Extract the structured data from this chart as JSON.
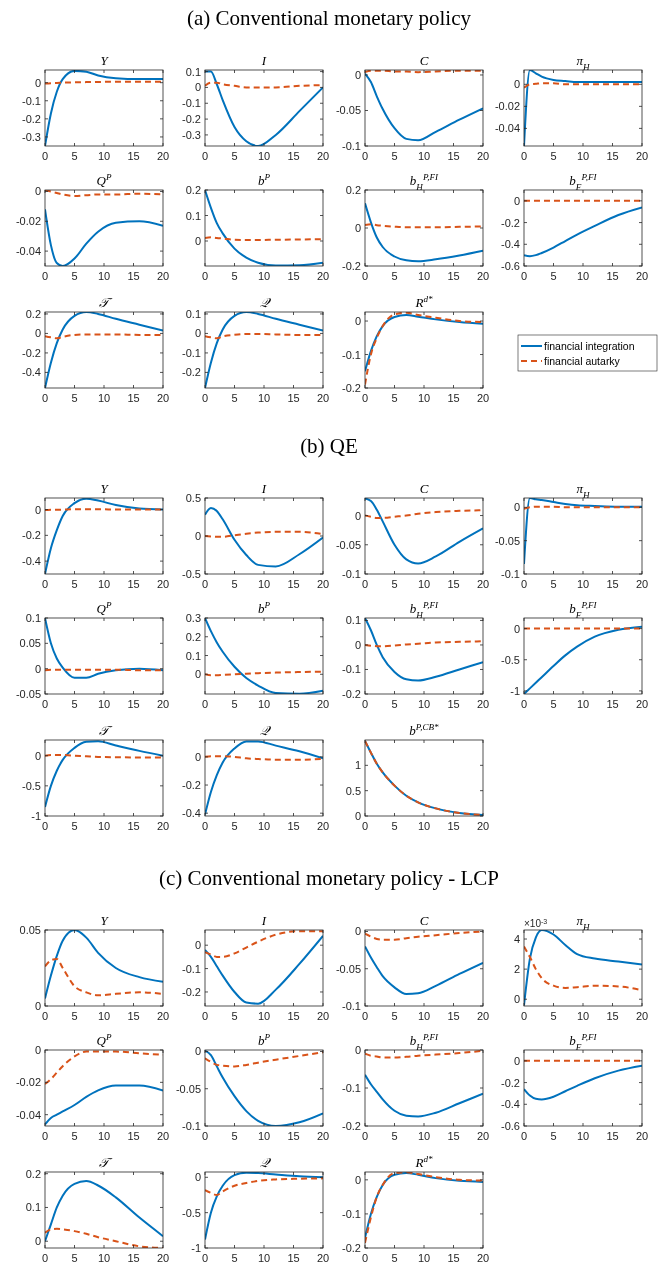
{
  "chart_data": [
    {
      "type": "line",
      "title": "Y",
      "annotations": [
        "(a) Conventional monetary policy"
      ],
      "x": [
        0,
        1,
        2,
        3,
        5,
        7,
        9,
        12,
        16,
        20
      ],
      "xlim": [
        0,
        20
      ],
      "xticks": [
        0,
        5,
        10,
        15,
        20
      ],
      "ylim": [
        -0.35,
        0.07
      ],
      "yticks": [
        -0.3,
        -0.2,
        -0.1,
        0
      ],
      "series": [
        {
          "color": "#0072bd",
          "line_style": "solid",
          "values": [
            -0.35,
            -0.17,
            -0.05,
            0.02,
            0.065,
            0.06,
            0.04,
            0.025,
            0.02,
            0.02
          ]
        },
        {
          "color": "#d95319",
          "line_style": "dashed",
          "values": [
            -0.005,
            -0.003,
            -0.002,
            0,
            0.002,
            0.003,
            0.004,
            0.005,
            0.005,
            0.005
          ]
        }
      ]
    },
    {
      "type": "line",
      "title": "I",
      "x": [
        0,
        1,
        2,
        3,
        5,
        7,
        9,
        12,
        16,
        20
      ],
      "xlim": [
        0,
        20
      ],
      "xticks": [
        0,
        5,
        10,
        15,
        20
      ],
      "ylim": [
        -0.37,
        0.11
      ],
      "yticks": [
        -0.3,
        -0.2,
        -0.1,
        0,
        0.1
      ],
      "series": [
        {
          "color": "#0072bd",
          "line_style": "solid",
          "values": [
            0.1,
            0.1,
            0.02,
            -0.08,
            -0.25,
            -0.34,
            -0.37,
            -0.3,
            -0.15,
            0
          ]
        },
        {
          "color": "#d95319",
          "line_style": "dashed",
          "values": [
            0.01,
            0.03,
            0.03,
            0.02,
            0.01,
            0,
            0,
            0,
            0.01,
            0.015
          ]
        }
      ]
    },
    {
      "type": "line",
      "title": "C",
      "x": [
        0,
        1,
        2,
        3,
        5,
        7,
        9,
        12,
        16,
        20
      ],
      "xlim": [
        0,
        20
      ],
      "xticks": [
        0,
        5,
        10,
        15,
        20
      ],
      "ylim": [
        -0.1,
        0.007
      ],
      "yticks": [
        -0.1,
        -0.05,
        0
      ],
      "series": [
        {
          "color": "#0072bd",
          "line_style": "solid",
          "values": [
            0.002,
            -0.01,
            -0.03,
            -0.048,
            -0.075,
            -0.09,
            -0.092,
            -0.08,
            -0.063,
            -0.047
          ]
        },
        {
          "color": "#d95319",
          "line_style": "dashed",
          "values": [
            0.004,
            0.006,
            0.006,
            0.006,
            0.005,
            0.005,
            0.004,
            0.005,
            0.006,
            0.006
          ]
        }
      ]
    },
    {
      "type": "line",
      "title": "π$_{H}$",
      "x": [
        0,
        1,
        2,
        3,
        5,
        7,
        9,
        12,
        16,
        20
      ],
      "xlim": [
        0,
        20
      ],
      "xticks": [
        0,
        5,
        10,
        15,
        20
      ],
      "ylim": [
        -0.056,
        0.013
      ],
      "yticks": [
        -0.04,
        -0.02,
        0
      ],
      "series": [
        {
          "color": "#0072bd",
          "line_style": "solid",
          "values": [
            -0.056,
            0.013,
            0.01,
            0.007,
            0.004,
            0.003,
            0.002,
            0.002,
            0.002,
            0.002
          ]
        },
        {
          "color": "#d95319",
          "line_style": "dashed",
          "values": [
            -0.003,
            0,
            0.0005,
            0.001,
            0.001,
            0,
            0,
            0,
            0,
            0
          ]
        }
      ]
    },
    {
      "type": "line",
      "title": "Q$^{P}$",
      "x": [
        0,
        1,
        2,
        3,
        5,
        7,
        9,
        12,
        16,
        20
      ],
      "xlim": [
        0,
        20
      ],
      "xticks": [
        0,
        5,
        10,
        15,
        20
      ],
      "ylim": [
        -0.05,
        0.001
      ],
      "yticks": [
        -0.04,
        -0.02,
        0
      ],
      "series": [
        {
          "color": "#0072bd",
          "line_style": "solid",
          "values": [
            -0.012,
            -0.036,
            -0.048,
            -0.05,
            -0.045,
            -0.035,
            -0.027,
            -0.021,
            -0.02,
            -0.023
          ]
        },
        {
          "color": "#d95319",
          "line_style": "dashed",
          "values": [
            0.001,
            0,
            -0.001,
            -0.002,
            -0.003,
            -0.0025,
            -0.002,
            -0.002,
            -0.0015,
            -0.002
          ]
        }
      ]
    },
    {
      "type": "line",
      "title": "b$^{P}$",
      "x": [
        0,
        1,
        2,
        3,
        5,
        7,
        9,
        12,
        16,
        20
      ],
      "xlim": [
        0,
        20
      ],
      "xticks": [
        0,
        5,
        10,
        15,
        20
      ],
      "ylim": [
        -0.098,
        0.2
      ],
      "yticks": [
        0,
        0.1,
        0.2
      ],
      "series": [
        {
          "color": "#0072bd",
          "line_style": "solid",
          "values": [
            0.2,
            0.13,
            0.07,
            0.03,
            -0.03,
            -0.065,
            -0.085,
            -0.096,
            -0.095,
            -0.085
          ]
        },
        {
          "color": "#d95319",
          "line_style": "dashed",
          "values": [
            0.012,
            0.015,
            0.012,
            0.01,
            0.005,
            0.004,
            0.004,
            0.005,
            0.006,
            0.007
          ]
        }
      ]
    },
    {
      "type": "line",
      "title": "b$_{H}$$^{P,FI}$",
      "x": [
        0,
        1,
        2,
        3,
        5,
        7,
        9,
        12,
        16,
        20
      ],
      "xlim": [
        0,
        20
      ],
      "xticks": [
        0,
        5,
        10,
        15,
        20
      ],
      "ylim": [
        -0.2,
        0.2
      ],
      "yticks": [
        -0.2,
        0,
        0.2
      ],
      "series": [
        {
          "color": "#0072bd",
          "line_style": "solid",
          "values": [
            0.13,
            0.03,
            -0.05,
            -0.1,
            -0.15,
            -0.17,
            -0.175,
            -0.165,
            -0.145,
            -0.12
          ]
        },
        {
          "color": "#d95319",
          "line_style": "dashed",
          "values": [
            0.015,
            0.02,
            0.015,
            0.012,
            0.007,
            0.004,
            0.004,
            0.004,
            0.006,
            0.008
          ]
        }
      ]
    },
    {
      "type": "line",
      "title": "b$_{F}$$^{P,FI}$",
      "x": [
        0,
        1,
        2,
        3,
        5,
        7,
        9,
        12,
        16,
        20
      ],
      "xlim": [
        0,
        20
      ],
      "xticks": [
        0,
        5,
        10,
        15,
        20
      ],
      "ylim": [
        -0.6,
        0.1
      ],
      "yticks": [
        -0.6,
        -0.4,
        -0.2,
        0
      ],
      "series": [
        {
          "color": "#0072bd",
          "line_style": "solid",
          "values": [
            -0.5,
            -0.51,
            -0.5,
            -0.48,
            -0.43,
            -0.37,
            -0.31,
            -0.23,
            -0.13,
            -0.06
          ]
        },
        {
          "color": "#d95319",
          "line_style": "dashed",
          "values": [
            0,
            0,
            0,
            0,
            0,
            0,
            0,
            0,
            0,
            0
          ]
        }
      ]
    },
    {
      "type": "line",
      "title": "𝒯",
      "x": [
        0,
        1,
        2,
        3,
        5,
        7,
        9,
        12,
        16,
        20
      ],
      "xlim": [
        0,
        20
      ],
      "xticks": [
        0,
        5,
        10,
        15,
        20
      ],
      "ylim": [
        -0.56,
        0.22
      ],
      "yticks": [
        -0.4,
        -0.2,
        0,
        0.2
      ],
      "series": [
        {
          "color": "#0072bd",
          "line_style": "solid",
          "values": [
            -0.56,
            -0.3,
            -0.1,
            0.04,
            0.18,
            0.22,
            0.2,
            0.15,
            0.09,
            0.03
          ]
        },
        {
          "color": "#d95319",
          "line_style": "dashed",
          "values": [
            -0.03,
            -0.04,
            -0.05,
            -0.035,
            -0.015,
            -0.01,
            -0.01,
            -0.01,
            -0.015,
            -0.015
          ]
        }
      ]
    },
    {
      "type": "line",
      "title": "𝒬",
      "x": [
        0,
        1,
        2,
        3,
        5,
        7,
        9,
        12,
        16,
        20
      ],
      "xlim": [
        0,
        20
      ],
      "xticks": [
        0,
        5,
        10,
        15,
        20
      ],
      "ylim": [
        -0.28,
        0.11
      ],
      "yticks": [
        -0.2,
        -0.1,
        0,
        0.1
      ],
      "series": [
        {
          "color": "#0072bd",
          "line_style": "solid",
          "values": [
            -0.28,
            -0.15,
            -0.05,
            0.02,
            0.09,
            0.11,
            0.1,
            0.075,
            0.045,
            0.015
          ]
        },
        {
          "color": "#d95319",
          "line_style": "dashed",
          "values": [
            -0.015,
            -0.02,
            -0.025,
            -0.015,
            -0.007,
            -0.003,
            -0.003,
            -0.005,
            -0.008,
            -0.008
          ]
        }
      ]
    },
    {
      "type": "line",
      "title": "R$^{d*}$",
      "legend": "right",
      "x": [
        0,
        1,
        2,
        3,
        5,
        7,
        9,
        12,
        16,
        20
      ],
      "xlim": [
        0,
        20
      ],
      "xticks": [
        0,
        5,
        10,
        15,
        20
      ],
      "ylim": [
        -0.2,
        0.027
      ],
      "yticks": [
        -0.2,
        -0.1,
        0
      ],
      "series": [
        {
          "name": "financial integration",
          "color": "#0072bd",
          "line_style": "solid",
          "values": [
            -0.15,
            -0.09,
            -0.045,
            -0.015,
            0.012,
            0.018,
            0.013,
            0.005,
            -0.003,
            -0.008
          ]
        },
        {
          "name": "financial autarky",
          "color": "#d95319",
          "line_style": "dashed",
          "values": [
            -0.19,
            -0.1,
            -0.05,
            -0.015,
            0.02,
            0.025,
            0.018,
            0.01,
            0,
            -0.003
          ]
        }
      ]
    },
    {
      "type": "line",
      "title": "Y",
      "annotations": [
        "(b) QE"
      ],
      "x": [
        0,
        1,
        2,
        3,
        5,
        7,
        9,
        12,
        16,
        20
      ],
      "xlim": [
        0,
        20
      ],
      "xticks": [
        0,
        5,
        10,
        15,
        20
      ],
      "ylim": [
        -0.5,
        0.09
      ],
      "yticks": [
        -0.4,
        -0.2,
        0
      ],
      "series": [
        {
          "color": "#0072bd",
          "line_style": "solid",
          "values": [
            -0.5,
            -0.3,
            -0.16,
            -0.05,
            0.05,
            0.085,
            0.07,
            0.035,
            0.008,
            0
          ]
        },
        {
          "color": "#d95319",
          "line_style": "dashed",
          "values": [
            -0.003,
            -0.002,
            -0.001,
            0,
            0.002,
            0.002,
            0.002,
            0.001,
            0,
            0
          ]
        }
      ]
    },
    {
      "type": "line",
      "title": "I",
      "x": [
        0,
        1,
        2,
        3,
        5,
        7,
        9,
        12,
        16,
        20
      ],
      "xlim": [
        0,
        20
      ],
      "xticks": [
        0,
        5,
        10,
        15,
        20
      ],
      "ylim": [
        -0.5,
        0.5
      ],
      "yticks": [
        -0.5,
        0,
        0.5
      ],
      "series": [
        {
          "color": "#0072bd",
          "line_style": "solid",
          "values": [
            0.28,
            0.37,
            0.33,
            0.22,
            -0.05,
            -0.25,
            -0.38,
            -0.4,
            -0.24,
            -0.02
          ]
        },
        {
          "color": "#d95319",
          "line_style": "dashed",
          "values": [
            0,
            -0.005,
            -0.01,
            -0.01,
            0.01,
            0.03,
            0.045,
            0.055,
            0.055,
            0.025
          ]
        }
      ]
    },
    {
      "type": "line",
      "title": "C",
      "x": [
        0,
        1,
        2,
        3,
        5,
        7,
        9,
        12,
        16,
        20
      ],
      "xlim": [
        0,
        20
      ],
      "xticks": [
        0,
        5,
        10,
        15,
        20
      ],
      "ylim": [
        -0.1,
        0.03
      ],
      "yticks": [
        -0.1,
        -0.05,
        0
      ],
      "series": [
        {
          "color": "#0072bd",
          "line_style": "solid",
          "values": [
            0.029,
            0.025,
            0.01,
            -0.01,
            -0.05,
            -0.075,
            -0.082,
            -0.07,
            -0.045,
            -0.022
          ]
        },
        {
          "color": "#d95319",
          "line_style": "dashed",
          "values": [
            0,
            -0.002,
            -0.004,
            -0.004,
            -0.002,
            0,
            0.003,
            0.006,
            0.008,
            0.009
          ]
        }
      ]
    },
    {
      "type": "line",
      "title": "π$_{H}$",
      "x": [
        0,
        1,
        2,
        3,
        5,
        7,
        9,
        12,
        16,
        20
      ],
      "xlim": [
        0,
        20
      ],
      "xticks": [
        0,
        5,
        10,
        15,
        20
      ],
      "ylim": [
        -0.1,
        0.014
      ],
      "yticks": [
        -0.1,
        -0.05,
        0
      ],
      "series": [
        {
          "color": "#0072bd",
          "line_style": "solid",
          "values": [
            -0.085,
            0.014,
            0.012,
            0.011,
            0.008,
            0.005,
            0.003,
            0.002,
            0.001,
            0.001
          ]
        },
        {
          "color": "#d95319",
          "line_style": "dashed",
          "values": [
            -0.002,
            0,
            0.001,
            0.001,
            0.001,
            0,
            0,
            0,
            0,
            0
          ]
        }
      ]
    },
    {
      "type": "line",
      "title": "Q$^{P}$",
      "x": [
        0,
        1,
        2,
        3,
        5,
        7,
        9,
        12,
        16,
        20
      ],
      "xlim": [
        0,
        20
      ],
      "xticks": [
        0,
        5,
        10,
        15,
        20
      ],
      "ylim": [
        -0.05,
        0.1
      ],
      "yticks": [
        -0.05,
        0,
        0.05,
        0.1
      ],
      "series": [
        {
          "color": "#0072bd",
          "line_style": "solid",
          "values": [
            0.1,
            0.05,
            0.02,
            0.002,
            -0.018,
            -0.018,
            -0.01,
            -0.003,
            0,
            -0.003
          ]
        },
        {
          "color": "#d95319",
          "line_style": "dashed",
          "values": [
            -0.003,
            -0.002,
            -0.002,
            -0.002,
            -0.002,
            -0.002,
            -0.002,
            -0.002,
            -0.003,
            -0.003
          ]
        }
      ]
    },
    {
      "type": "line",
      "title": "b$^{P}$",
      "x": [
        0,
        1,
        2,
        3,
        5,
        7,
        9,
        12,
        16,
        20
      ],
      "xlim": [
        0,
        20
      ],
      "xticks": [
        0,
        5,
        10,
        15,
        20
      ],
      "ylim": [
        -0.105,
        0.3
      ],
      "yticks": [
        0,
        0.1,
        0.2,
        0.3
      ],
      "series": [
        {
          "color": "#0072bd",
          "line_style": "solid",
          "values": [
            0.3,
            0.23,
            0.17,
            0.12,
            0.04,
            -0.02,
            -0.06,
            -0.1,
            -0.103,
            -0.087
          ]
        },
        {
          "color": "#d95319",
          "line_style": "dashed",
          "values": [
            0,
            -0.005,
            -0.005,
            -0.003,
            0,
            0.003,
            0.006,
            0.009,
            0.012,
            0.014
          ]
        }
      ]
    },
    {
      "type": "line",
      "title": "b$_{H}$$^{P,FI}$",
      "x": [
        0,
        1,
        2,
        3,
        5,
        7,
        9,
        12,
        16,
        20
      ],
      "xlim": [
        0,
        20
      ],
      "xticks": [
        0,
        5,
        10,
        15,
        20
      ],
      "ylim": [
        -0.2,
        0.11
      ],
      "yticks": [
        -0.2,
        -0.1,
        0,
        0.1
      ],
      "series": [
        {
          "color": "#0072bd",
          "line_style": "solid",
          "values": [
            0.11,
            0.06,
            0,
            -0.05,
            -0.11,
            -0.14,
            -0.145,
            -0.13,
            -0.1,
            -0.07
          ]
        },
        {
          "color": "#d95319",
          "line_style": "dashed",
          "values": [
            0,
            -0.003,
            -0.005,
            -0.005,
            -0.002,
            0.002,
            0.005,
            0.01,
            0.013,
            0.015
          ]
        }
      ]
    },
    {
      "type": "line",
      "title": "b$_{F}$$^{P,FI}$",
      "x": [
        0,
        1,
        2,
        3,
        5,
        7,
        9,
        12,
        16,
        20
      ],
      "xlim": [
        0,
        20
      ],
      "xticks": [
        0,
        5,
        10,
        15,
        20
      ],
      "ylim": [
        -1.05,
        0.17
      ],
      "yticks": [
        -1,
        -0.5,
        0
      ],
      "series": [
        {
          "color": "#0072bd",
          "line_style": "solid",
          "values": [
            -1.05,
            -0.96,
            -0.87,
            -0.78,
            -0.6,
            -0.43,
            -0.29,
            -0.13,
            -0.02,
            0.03
          ]
        },
        {
          "color": "#d95319",
          "line_style": "dashed",
          "values": [
            0,
            0,
            0,
            0,
            0,
            0,
            0,
            0,
            0,
            0
          ]
        }
      ]
    },
    {
      "type": "line",
      "title": "𝒯",
      "x": [
        0,
        1,
        2,
        3,
        5,
        7,
        9,
        12,
        16,
        20
      ],
      "xlim": [
        0,
        20
      ],
      "xticks": [
        0,
        5,
        10,
        15,
        20
      ],
      "ylim": [
        -1,
        0.26
      ],
      "yticks": [
        -1,
        -0.5,
        0
      ],
      "series": [
        {
          "color": "#0072bd",
          "line_style": "solid",
          "values": [
            -0.85,
            -0.5,
            -0.25,
            -0.07,
            0.13,
            0.23,
            0.24,
            0.17,
            0.08,
            0
          ]
        },
        {
          "color": "#d95319",
          "line_style": "dashed",
          "values": [
            0,
            0.01,
            0.01,
            0.01,
            0,
            -0.01,
            -0.02,
            -0.025,
            -0.03,
            -0.03
          ]
        }
      ]
    },
    {
      "type": "line",
      "title": "𝒬",
      "x": [
        0,
        1,
        2,
        3,
        5,
        7,
        9,
        12,
        16,
        20
      ],
      "xlim": [
        0,
        20
      ],
      "xticks": [
        0,
        5,
        10,
        15,
        20
      ],
      "ylim": [
        -0.42,
        0.12
      ],
      "yticks": [
        -0.4,
        -0.2,
        0
      ],
      "series": [
        {
          "color": "#0072bd",
          "line_style": "solid",
          "values": [
            -0.41,
            -0.25,
            -0.13,
            -0.04,
            0.06,
            0.11,
            0.11,
            0.08,
            0.04,
            -0.01
          ]
        },
        {
          "color": "#d95319",
          "line_style": "dashed",
          "values": [
            0,
            0.005,
            0.005,
            0.005,
            0,
            -0.01,
            -0.015,
            -0.02,
            -0.02,
            -0.015
          ]
        }
      ]
    },
    {
      "type": "line",
      "title": "b$^{P,CB*}$",
      "x": [
        0,
        1,
        2,
        3,
        5,
        7,
        9,
        12,
        16,
        20
      ],
      "xlim": [
        0,
        20
      ],
      "xticks": [
        0,
        5,
        10,
        15,
        20
      ],
      "ylim": [
        0,
        1.5
      ],
      "yticks": [
        0,
        0.5,
        1
      ],
      "series": [
        {
          "color": "#0072bd",
          "line_style": "solid",
          "values": [
            1.48,
            1.25,
            1.03,
            0.86,
            0.6,
            0.4,
            0.27,
            0.15,
            0.06,
            0.02
          ]
        },
        {
          "color": "#d95319",
          "line_style": "dashed",
          "values": [
            1.48,
            1.25,
            1.03,
            0.86,
            0.6,
            0.4,
            0.27,
            0.15,
            0.06,
            0.02
          ]
        }
      ]
    },
    {
      "type": "line",
      "title": "Y",
      "annotations": [
        "(c) Conventional monetary policy - LCP"
      ],
      "x": [
        0,
        1,
        2,
        3,
        5,
        7,
        9,
        12,
        16,
        20
      ],
      "xlim": [
        0,
        20
      ],
      "xticks": [
        0,
        5,
        10,
        15,
        20
      ],
      "ylim": [
        0,
        0.05
      ],
      "yticks": [
        0,
        0.05
      ],
      "series": [
        {
          "color": "#0072bd",
          "line_style": "solid",
          "values": [
            0.005,
            0.02,
            0.033,
            0.043,
            0.05,
            0.045,
            0.035,
            0.025,
            0.019,
            0.016
          ]
        },
        {
          "color": "#d95319",
          "line_style": "dashed",
          "values": [
            0.026,
            0.03,
            0.031,
            0.025,
            0.013,
            0.009,
            0.007,
            0.008,
            0.009,
            0.008
          ]
        }
      ]
    },
    {
      "type": "line",
      "title": "I",
      "x": [
        0,
        1,
        2,
        3,
        5,
        7,
        9,
        12,
        16,
        20
      ],
      "xlim": [
        0,
        20
      ],
      "xticks": [
        0,
        5,
        10,
        15,
        20
      ],
      "ylim": [
        -0.26,
        0.065
      ],
      "yticks": [
        -0.2,
        -0.1,
        0
      ],
      "series": [
        {
          "color": "#0072bd",
          "line_style": "solid",
          "values": [
            -0.02,
            -0.05,
            -0.09,
            -0.13,
            -0.2,
            -0.245,
            -0.25,
            -0.19,
            -0.08,
            0.04
          ]
        },
        {
          "color": "#d95319",
          "line_style": "dashed",
          "values": [
            -0.03,
            -0.04,
            -0.05,
            -0.05,
            -0.035,
            -0.01,
            0.015,
            0.045,
            0.06,
            0.06
          ]
        }
      ]
    },
    {
      "type": "line",
      "title": "C",
      "x": [
        0,
        1,
        2,
        3,
        5,
        7,
        9,
        12,
        16,
        20
      ],
      "xlim": [
        0,
        20
      ],
      "xticks": [
        0,
        5,
        10,
        15,
        20
      ],
      "ylim": [
        -0.1,
        0.002
      ],
      "yticks": [
        -0.1,
        -0.05,
        0
      ],
      "series": [
        {
          "color": "#0072bd",
          "line_style": "solid",
          "values": [
            -0.02,
            -0.035,
            -0.048,
            -0.06,
            -0.075,
            -0.084,
            -0.083,
            -0.073,
            -0.057,
            -0.042
          ]
        },
        {
          "color": "#d95319",
          "line_style": "dashed",
          "values": [
            -0.003,
            -0.007,
            -0.01,
            -0.011,
            -0.011,
            -0.009,
            -0.007,
            -0.005,
            -0.002,
            0
          ]
        }
      ]
    },
    {
      "type": "line",
      "title": "π$_{H}$",
      "annotations": [
        "×10$^{-3}$"
      ],
      "x": [
        0,
        1,
        2,
        3,
        5,
        7,
        9,
        12,
        16,
        20
      ],
      "xlim": [
        0,
        20
      ],
      "xticks": [
        0,
        5,
        10,
        15,
        20
      ],
      "ylim": [
        -0.45,
        4.6
      ],
      "yticks": [
        0,
        2,
        4
      ],
      "series": [
        {
          "color": "#0072bd",
          "line_style": "solid",
          "values": [
            -0.4,
            2.7,
            4.1,
            4.6,
            4.3,
            3.6,
            3,
            2.7,
            2.5,
            2.3
          ]
        },
        {
          "color": "#d95319",
          "line_style": "dashed",
          "values": [
            3.5,
            2.8,
            2,
            1.4,
            0.9,
            0.75,
            0.8,
            0.9,
            0.85,
            0.6
          ]
        }
      ]
    },
    {
      "type": "line",
      "title": "Q$^{P}$",
      "x": [
        0,
        1,
        2,
        3,
        5,
        7,
        9,
        12,
        16,
        20
      ],
      "xlim": [
        0,
        20
      ],
      "xticks": [
        0,
        5,
        10,
        15,
        20
      ],
      "ylim": [
        -0.047,
        0
      ],
      "yticks": [
        -0.04,
        -0.02,
        0
      ],
      "series": [
        {
          "color": "#0072bd",
          "line_style": "solid",
          "values": [
            -0.046,
            -0.042,
            -0.04,
            -0.038,
            -0.034,
            -0.029,
            -0.025,
            -0.022,
            -0.022,
            -0.025
          ]
        },
        {
          "color": "#d95319",
          "line_style": "dashed",
          "values": [
            -0.021,
            -0.018,
            -0.014,
            -0.01,
            -0.004,
            -0.001,
            -0.001,
            -0.001,
            -0.002,
            -0.003
          ]
        }
      ]
    },
    {
      "type": "line",
      "title": "b$^{P}$",
      "x": [
        0,
        1,
        2,
        3,
        5,
        7,
        9,
        12,
        16,
        20
      ],
      "xlim": [
        0,
        20
      ],
      "xticks": [
        0,
        5,
        10,
        15,
        20
      ],
      "ylim": [
        -0.1,
        0.002
      ],
      "yticks": [
        -0.1,
        -0.05,
        0
      ],
      "series": [
        {
          "color": "#0072bd",
          "line_style": "solid",
          "values": [
            0.001,
            -0.005,
            -0.02,
            -0.035,
            -0.06,
            -0.08,
            -0.093,
            -0.1,
            -0.095,
            -0.083
          ]
        },
        {
          "color": "#d95319",
          "line_style": "dashed",
          "values": [
            -0.009,
            -0.014,
            -0.018,
            -0.019,
            -0.02,
            -0.018,
            -0.015,
            -0.011,
            -0.006,
            -0.001
          ]
        }
      ]
    },
    {
      "type": "line",
      "title": "b$_{H}$$^{P,FI}$",
      "x": [
        0,
        1,
        2,
        3,
        5,
        7,
        9,
        12,
        16,
        20
      ],
      "xlim": [
        0,
        20
      ],
      "xticks": [
        0,
        5,
        10,
        15,
        20
      ],
      "ylim": [
        -0.2,
        0
      ],
      "yticks": [
        -0.2,
        -0.1,
        0
      ],
      "series": [
        {
          "color": "#0072bd",
          "line_style": "solid",
          "values": [
            -0.065,
            -0.09,
            -0.11,
            -0.13,
            -0.16,
            -0.173,
            -0.175,
            -0.165,
            -0.14,
            -0.115
          ]
        },
        {
          "color": "#d95319",
          "line_style": "dashed",
          "values": [
            -0.01,
            -0.015,
            -0.017,
            -0.02,
            -0.02,
            -0.018,
            -0.015,
            -0.012,
            -0.008,
            -0.002
          ]
        }
      ]
    },
    {
      "type": "line",
      "title": "b$_{F}$$^{P,FI}$",
      "x": [
        0,
        1,
        2,
        3,
        5,
        7,
        9,
        12,
        16,
        20
      ],
      "xlim": [
        0,
        20
      ],
      "xticks": [
        0,
        5,
        10,
        15,
        20
      ],
      "ylim": [
        -0.6,
        0.1
      ],
      "yticks": [
        -0.6,
        -0.4,
        -0.2,
        0
      ],
      "series": [
        {
          "color": "#0072bd",
          "line_style": "solid",
          "values": [
            -0.26,
            -0.32,
            -0.35,
            -0.355,
            -0.33,
            -0.28,
            -0.23,
            -0.16,
            -0.09,
            -0.045
          ]
        },
        {
          "color": "#d95319",
          "line_style": "dashed",
          "values": [
            0,
            0,
            0,
            0,
            0,
            0,
            0,
            0,
            0,
            0
          ]
        }
      ]
    },
    {
      "type": "line",
      "title": "𝒯",
      "x": [
        0,
        1,
        2,
        3,
        5,
        7,
        9,
        12,
        16,
        20
      ],
      "xlim": [
        0,
        20
      ],
      "xticks": [
        0,
        5,
        10,
        15,
        20
      ],
      "ylim": [
        -0.02,
        0.205
      ],
      "yticks": [
        0,
        0.1,
        0.2
      ],
      "series": [
        {
          "color": "#0072bd",
          "line_style": "solid",
          "values": [
            0,
            0.05,
            0.1,
            0.135,
            0.17,
            0.178,
            0.165,
            0.13,
            0.07,
            0.015
          ]
        },
        {
          "color": "#d95319",
          "line_style": "dashed",
          "values": [
            0.025,
            0.035,
            0.037,
            0.035,
            0.03,
            0.022,
            0.012,
            0,
            -0.015,
            -0.02
          ]
        }
      ]
    },
    {
      "type": "line",
      "title": "𝒬",
      "x": [
        0,
        1,
        2,
        3,
        5,
        7,
        9,
        12,
        16,
        20
      ],
      "xlim": [
        0,
        20
      ],
      "xticks": [
        0,
        5,
        10,
        15,
        20
      ],
      "ylim": [
        -1,
        0.075
      ],
      "yticks": [
        -1,
        -0.5,
        0
      ],
      "series": [
        {
          "color": "#0072bd",
          "line_style": "solid",
          "values": [
            -0.88,
            -0.5,
            -0.27,
            -0.12,
            0.03,
            0.065,
            0.06,
            0.04,
            0.015,
            0
          ]
        },
        {
          "color": "#d95319",
          "line_style": "dashed",
          "values": [
            -0.18,
            -0.22,
            -0.25,
            -0.2,
            -0.12,
            -0.08,
            -0.05,
            -0.03,
            -0.02,
            -0.015
          ]
        }
      ]
    },
    {
      "type": "line",
      "title": "R$^{d*}$",
      "x": [
        0,
        1,
        2,
        3,
        5,
        7,
        9,
        12,
        16,
        20
      ],
      "xlim": [
        0,
        20
      ],
      "xticks": [
        0,
        5,
        10,
        15,
        20
      ],
      "ylim": [
        -0.2,
        0.023
      ],
      "yticks": [
        -0.2,
        -0.1,
        0
      ],
      "series": [
        {
          "color": "#0072bd",
          "line_style": "solid",
          "values": [
            -0.17,
            -0.1,
            -0.05,
            -0.015,
            0.015,
            0.02,
            0.015,
            0.005,
            -0.003,
            -0.006
          ]
        },
        {
          "color": "#d95319",
          "line_style": "dashed",
          "values": [
            -0.185,
            -0.11,
            -0.05,
            -0.015,
            0.02,
            0.022,
            0.017,
            0.008,
            0,
            -0.002
          ]
        }
      ]
    }
  ]
}
